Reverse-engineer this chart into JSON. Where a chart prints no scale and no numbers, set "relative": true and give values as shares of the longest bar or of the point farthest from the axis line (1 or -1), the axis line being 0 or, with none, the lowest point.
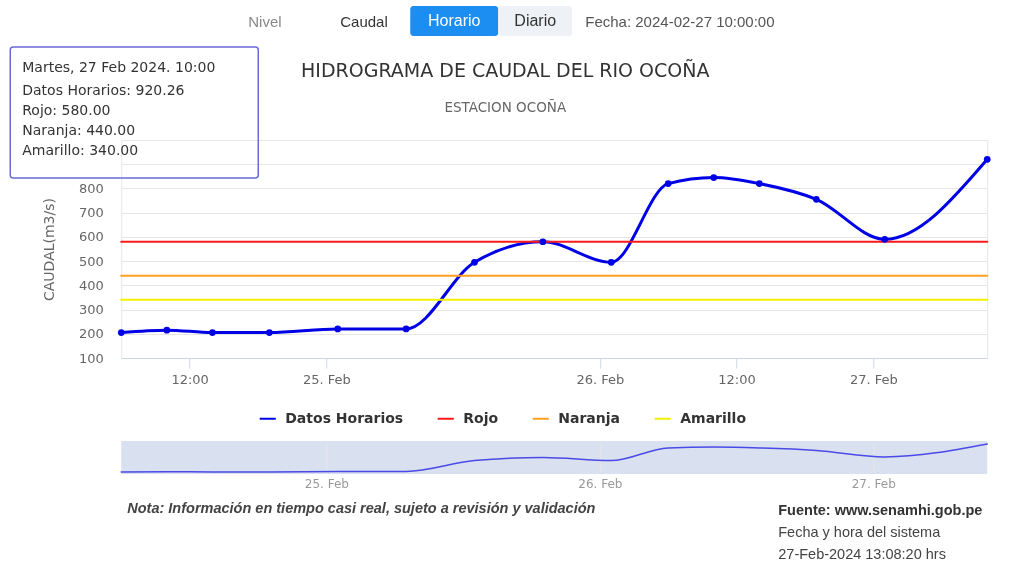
{
  "chart_data": [
    {
      "type": "line",
      "title": "HIDROGRAMA DE CAUDAL DEL RIO OCOÑA",
      "subtitle": "ESTACION OCOÑA",
      "ylabel": "CAUDAL(m3/s)",
      "x": [
        "2024-02-24T06:00",
        "2024-02-24T10:00",
        "2024-02-24T14:00",
        "2024-02-24T19:00",
        "2024-02-25T01:00",
        "2024-02-25T07:00",
        "2024-02-25T13:00",
        "2024-02-25T19:00",
        "2024-02-26T01:00",
        "2024-02-26T06:00",
        "2024-02-26T10:00",
        "2024-02-26T14:00",
        "2024-02-26T19:00",
        "2024-02-27T01:00",
        "2024-02-27T10:00"
      ],
      "series": [
        {
          "name": "Datos Horarios",
          "color": "#0000e6",
          "marker": "circle",
          "values": [
            205,
            215,
            205,
            205,
            220,
            220,
            495,
            580,
            495,
            820,
            845,
            820,
            755,
            590,
            920.26
          ]
        },
        {
          "name": "Rojo",
          "color": "#ff1a1a",
          "x": [
            "2024-02-24T06:00",
            "2024-02-27T10:00"
          ],
          "values": [
            580,
            580
          ]
        },
        {
          "name": "Naranja",
          "color": "#ffa020",
          "x": [
            "2024-02-24T06:00",
            "2024-02-27T10:00"
          ],
          "values": [
            440,
            440
          ]
        },
        {
          "name": "Amarillo",
          "color": "#f2f200",
          "x": [
            "2024-02-24T06:00",
            "2024-02-27T10:00"
          ],
          "values": [
            340,
            340
          ]
        }
      ],
      "xlim": [
        "2024-02-24T06:00",
        "2024-02-27T10:00"
      ],
      "xticks": [
        {
          "value": "2024-02-24T12:00",
          "label": "12:00"
        },
        {
          "value": "2024-02-25",
          "label": "25. Feb"
        },
        {
          "value": "2024-02-26",
          "label": "26. Feb"
        },
        {
          "value": "2024-02-26T12:00",
          "label": "12:00"
        },
        {
          "value": "2024-02-27",
          "label": "27. Feb"
        }
      ],
      "ylim": [
        100,
        1000
      ],
      "yticks": [
        100,
        200,
        300,
        400,
        500,
        600,
        700,
        800,
        {
          "value": 900,
          "label": null
        },
        {
          "value": 1000,
          "label": null
        }
      ],
      "grid": "y",
      "legend": "bottom",
      "annotations": [
        "Nivel",
        "Caudal",
        "Horario",
        "Diario",
        "Fecha: 2024-02-27 10:00:00",
        "Martes, 27 Feb 2024. 10:00",
        "Datos Horarios: 920.26",
        "Rojo: 580.00",
        "Naranja: 440.00",
        "Amarillo: 340.00",
        "Nota: Información en tiempo casi real, sujeto a revisión y validación",
        "Fuente: www.senamhi.gob.pe",
        "Fecha y hora del sistema",
        "27-Feb-2024 13:08:20 hrs"
      ]
    },
    {
      "type": "line",
      "relative": true,
      "x": [
        "2024-02-24T06:00",
        "2024-02-24T10:00",
        "2024-02-24T14:00",
        "2024-02-24T19:00",
        "2024-02-25T01:00",
        "2024-02-25T07:00",
        "2024-02-25T13:00",
        "2024-02-25T19:00",
        "2024-02-26T01:00",
        "2024-02-26T06:00",
        "2024-02-26T10:00",
        "2024-02-26T14:00",
        "2024-02-26T19:00",
        "2024-02-27T01:00",
        "2024-02-27T10:00"
      ],
      "values": [
        0,
        0.01,
        0,
        0,
        0.02,
        0.02,
        0.41,
        0.52,
        0.41,
        0.86,
        0.89,
        0.86,
        0.77,
        0.54,
        1
      ],
      "color": "#4a4ae6",
      "xlim": [
        "2024-02-24T06:00",
        "2024-02-27T10:00"
      ],
      "xticks": [
        {
          "value": "2024-02-25",
          "label": "25. Feb"
        },
        {
          "value": "2024-02-26",
          "label": "26. Feb"
        },
        {
          "value": "2024-02-27",
          "label": "27. Feb"
        }
      ],
      "grid": "x"
    }
  ]
}
